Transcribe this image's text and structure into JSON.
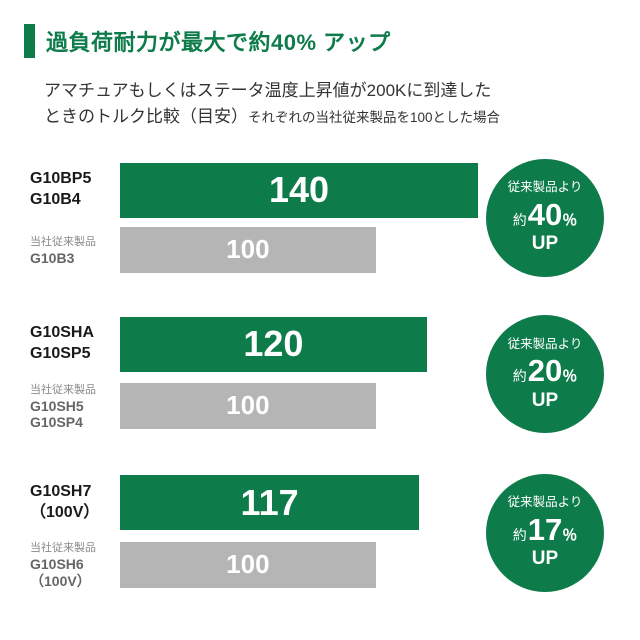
{
  "header": {
    "title": "過負荷耐力が最大で約40% アップ"
  },
  "subtitle": {
    "line1": "アマチュアもしくはステータ温度上昇値が200Kに到達した",
    "line2_main": "ときのトルク比較（目安）",
    "line2_small": "それぞれの当社従来製品を100とした場合"
  },
  "colors": {
    "brand_green": "#0e7c4a",
    "bar_gray": "#b5b5b5",
    "value_text": "#ffffff"
  },
  "chart_data": {
    "type": "bar",
    "orientation": "horizontal",
    "title": "過負荷耐力が最大で約40% アップ",
    "subtitle": "アマチュアもしくはステータ温度上昇値が200Kに到達したときのトルク比較（目安）それぞれの当社従来製品を100とした場合",
    "baseline_note": "それぞれの当社従来製品を100とした場合",
    "xlim": [
      0,
      140
    ],
    "grid": false,
    "legend": false,
    "groups": [
      {
        "new": {
          "label_lines": [
            "G10BP5",
            "G10B4"
          ],
          "value": 140
        },
        "old": {
          "head": "当社従来製品",
          "label_lines": [
            "G10B3"
          ],
          "value": 100
        },
        "badge": {
          "line1": "従来製品より",
          "approx": "約",
          "percent": "40",
          "unit": "％",
          "line3": "UP"
        }
      },
      {
        "new": {
          "label_lines": [
            "G10SHA",
            "G10SP5"
          ],
          "value": 120
        },
        "old": {
          "head": "当社従来製品",
          "label_lines": [
            "G10SH5",
            "G10SP4"
          ],
          "value": 100
        },
        "badge": {
          "line1": "従来製品より",
          "approx": "約",
          "percent": "20",
          "unit": "％",
          "line3": "UP"
        }
      },
      {
        "new": {
          "label_lines": [
            "G10SH7",
            "（100V）"
          ],
          "value": 117
        },
        "old": {
          "head": "当社従来製品",
          "label_lines": [
            "G10SH6",
            "（100V）"
          ],
          "value": 100
        },
        "badge": {
          "line1": "従来製品より",
          "approx": "約",
          "percent": "17",
          "unit": "％",
          "line3": "UP"
        }
      }
    ]
  }
}
